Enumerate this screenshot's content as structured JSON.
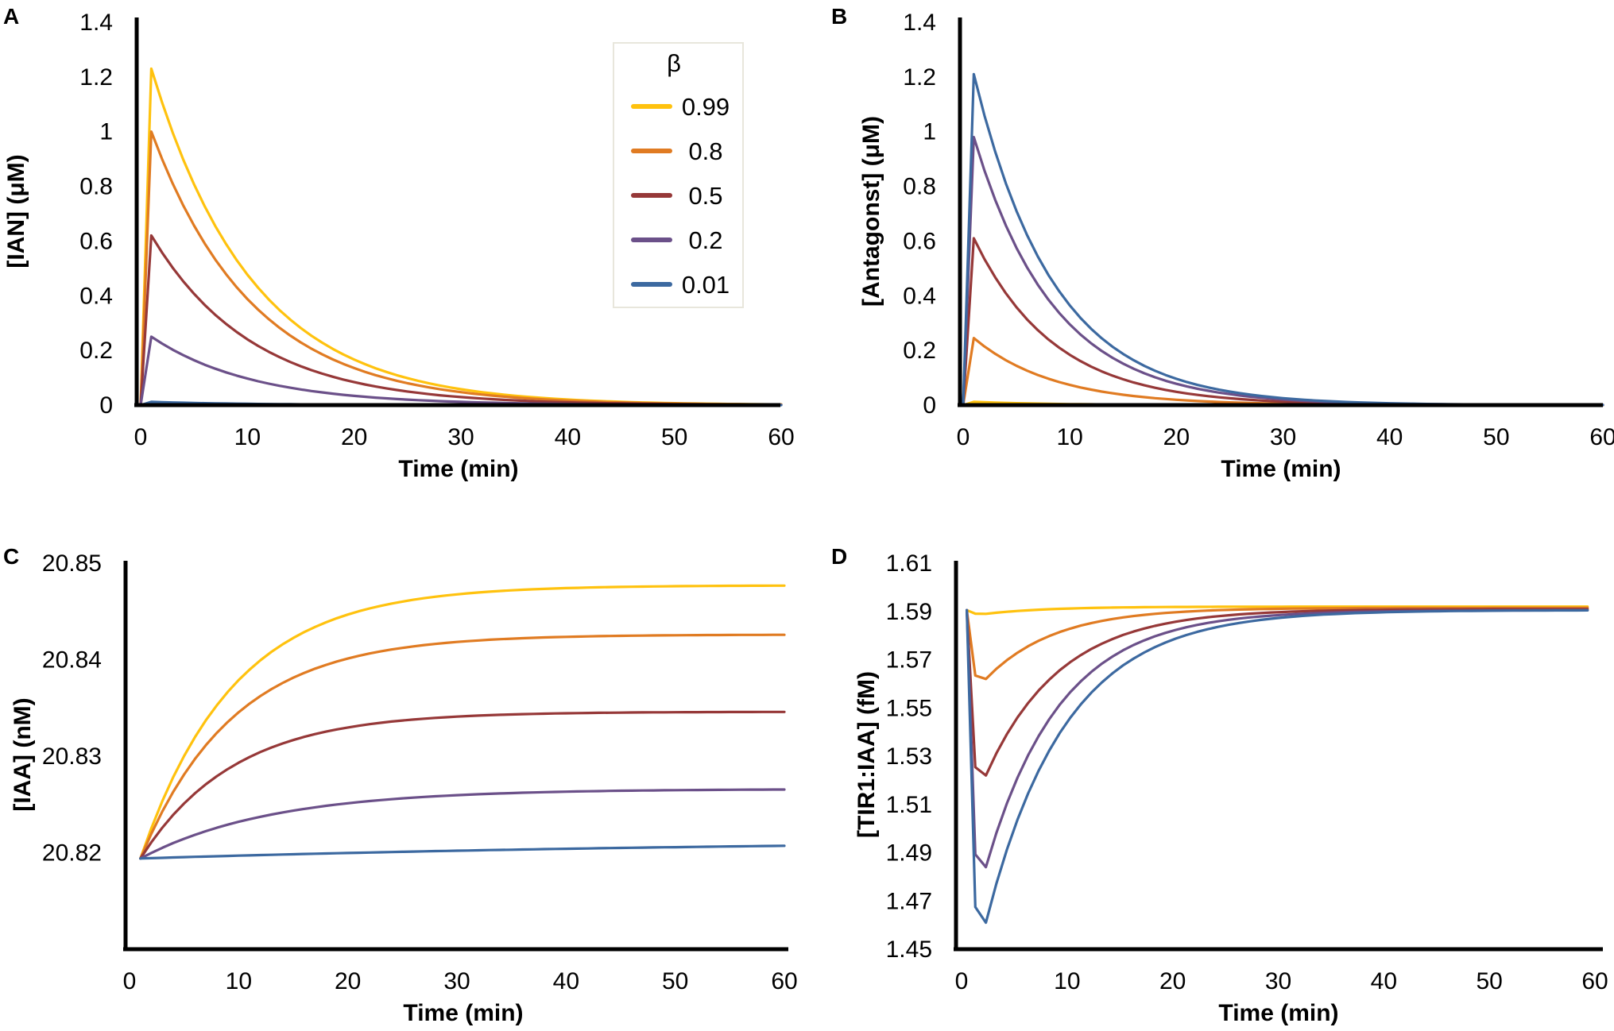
{
  "colors": {
    "b099": "#FFC20E",
    "b08": "#E07B22",
    "b05": "#963838",
    "b02": "#6B5089",
    "b001": "#3C69A0"
  },
  "legend": {
    "title": "β",
    "entries": [
      {
        "label": "0.99",
        "color_key": "b099"
      },
      {
        "label": "0.8",
        "color_key": "b08"
      },
      {
        "label": "0.5",
        "color_key": "b05"
      },
      {
        "label": "0.2",
        "color_key": "b02"
      },
      {
        "label": "0.01",
        "color_key": "b001"
      }
    ]
  },
  "chart_data": [
    {
      "panel": "A",
      "type": "line",
      "xlabel": "Time (min)",
      "ylabel": "[IAN] (μM)",
      "xlim": [
        0,
        60
      ],
      "ylim": [
        0,
        1.4
      ],
      "xticks": [
        "0",
        "10",
        "20",
        "30",
        "40",
        "50",
        "60"
      ],
      "yticks": [
        "0",
        "0.2",
        "0.4",
        "0.6",
        "0.8",
        "1",
        "1.2",
        "1.4"
      ],
      "series": [
        {
          "name": "0.99",
          "color_key": "b099",
          "peak": 1.23,
          "tau": 9.5,
          "baseline": 0
        },
        {
          "name": "0.8",
          "color_key": "b08",
          "peak": 1.0,
          "tau": 9.5,
          "baseline": 0
        },
        {
          "name": "0.5",
          "color_key": "b05",
          "peak": 0.62,
          "tau": 9.5,
          "baseline": 0
        },
        {
          "name": "0.2",
          "color_key": "b02",
          "peak": 0.25,
          "tau": 9.5,
          "baseline": 0
        },
        {
          "name": "0.01",
          "color_key": "b001",
          "peak": 0.012,
          "tau": 9.5,
          "baseline": 0
        }
      ]
    },
    {
      "panel": "B",
      "type": "line",
      "xlabel": "Time (min)",
      "ylabel": "[Antagonst] (μM)",
      "xlim": [
        0,
        60
      ],
      "ylim": [
        0,
        1.4
      ],
      "xticks": [
        "0",
        "10",
        "20",
        "30",
        "40",
        "50",
        "60"
      ],
      "yticks": [
        "0",
        "0.2",
        "0.4",
        "0.6",
        "0.8",
        "1",
        "1.2",
        "1.4"
      ],
      "series": [
        {
          "name": "0.99",
          "color_key": "b099",
          "peak": 0.012,
          "tau": 7.5,
          "baseline": 0
        },
        {
          "name": "0.8",
          "color_key": "b08",
          "peak": 0.245,
          "tau": 7.5,
          "baseline": 0
        },
        {
          "name": "0.5",
          "color_key": "b05",
          "peak": 0.61,
          "tau": 7.5,
          "baseline": 0
        },
        {
          "name": "0.2",
          "color_key": "b02",
          "peak": 0.98,
          "tau": 7.5,
          "baseline": 0
        },
        {
          "name": "0.01",
          "color_key": "b001",
          "peak": 1.21,
          "tau": 7.5,
          "baseline": 0
        }
      ]
    },
    {
      "panel": "C",
      "type": "line",
      "xlabel": "Time (min)",
      "ylabel": "[IAA] (nM)",
      "xlim": [
        0,
        60
      ],
      "ylim": [
        20.81,
        20.85
      ],
      "xticks": [
        "0",
        "10",
        "20",
        "30",
        "40",
        "50",
        "60"
      ],
      "yticks": [
        "20.82",
        "20.83",
        "20.84",
        "20.85"
      ],
      "ytick_values": [
        20.82,
        20.83,
        20.84,
        20.85
      ],
      "series": [
        {
          "name": "0.99",
          "color_key": "b099",
          "start": 20.8194,
          "end": 20.8477,
          "tau": 8.5
        },
        {
          "name": "0.8",
          "color_key": "b08",
          "start": 20.8194,
          "end": 20.8426,
          "tau": 8.5
        },
        {
          "name": "0.5",
          "color_key": "b05",
          "start": 20.8194,
          "end": 20.8346,
          "tau": 8.5
        },
        {
          "name": "0.2",
          "color_key": "b02",
          "start": 20.8194,
          "end": 20.8266,
          "tau": 12
        },
        {
          "name": "0.01",
          "color_key": "b001",
          "start": 20.8194,
          "end": 20.8215,
          "tau": 60
        }
      ]
    },
    {
      "panel": "D",
      "type": "line",
      "xlabel": "Time (min)",
      "ylabel": "[TIR1:IAA] (fM)",
      "xlim": [
        0,
        60
      ],
      "ylim": [
        1.45,
        1.61
      ],
      "xticks": [
        "0",
        "10",
        "20",
        "30",
        "40",
        "50",
        "60"
      ],
      "yticks": [
        "1.45",
        "1.47",
        "1.49",
        "1.51",
        "1.53",
        "1.55",
        "1.57",
        "1.59",
        "1.61"
      ],
      "ytick_values": [
        1.45,
        1.47,
        1.49,
        1.51,
        1.53,
        1.55,
        1.57,
        1.59,
        1.61
      ],
      "series": [
        {
          "name": "0.99",
          "color_key": "b099",
          "start": 1.5905,
          "min": 1.589,
          "end": 1.592,
          "tau": 6
        },
        {
          "name": "0.8",
          "color_key": "b08",
          "start": 1.5905,
          "min": 1.562,
          "end": 1.5915,
          "tau": 6.5
        },
        {
          "name": "0.5",
          "color_key": "b05",
          "start": 1.5905,
          "min": 1.522,
          "end": 1.591,
          "tau": 7
        },
        {
          "name": "0.2",
          "color_key": "b02",
          "start": 1.5905,
          "min": 1.484,
          "end": 1.5905,
          "tau": 7
        },
        {
          "name": "0.01",
          "color_key": "b001",
          "start": 1.5905,
          "min": 1.461,
          "end": 1.5905,
          "tau": 7.5
        }
      ]
    }
  ]
}
